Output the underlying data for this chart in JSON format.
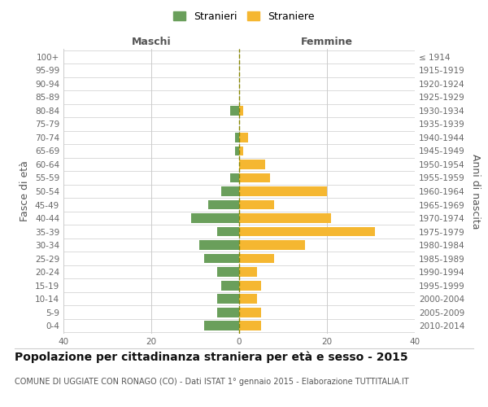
{
  "age_groups": [
    "0-4",
    "5-9",
    "10-14",
    "15-19",
    "20-24",
    "25-29",
    "30-34",
    "35-39",
    "40-44",
    "45-49",
    "50-54",
    "55-59",
    "60-64",
    "65-69",
    "70-74",
    "75-79",
    "80-84",
    "85-89",
    "90-94",
    "95-99",
    "100+"
  ],
  "birth_years": [
    "2010-2014",
    "2005-2009",
    "2000-2004",
    "1995-1999",
    "1990-1994",
    "1985-1989",
    "1980-1984",
    "1975-1979",
    "1970-1974",
    "1965-1969",
    "1960-1964",
    "1955-1959",
    "1950-1954",
    "1945-1949",
    "1940-1944",
    "1935-1939",
    "1930-1934",
    "1925-1929",
    "1920-1924",
    "1915-1919",
    "≤ 1914"
  ],
  "maschi": [
    8,
    5,
    5,
    4,
    5,
    8,
    9,
    5,
    11,
    7,
    4,
    2,
    0,
    1,
    1,
    0,
    2,
    0,
    0,
    0,
    0
  ],
  "femmine": [
    5,
    5,
    4,
    5,
    4,
    8,
    15,
    31,
    21,
    8,
    20,
    7,
    6,
    1,
    2,
    0,
    1,
    0,
    0,
    0,
    0
  ],
  "maschi_color": "#6a9f5b",
  "femmine_color": "#f5b731",
  "center_line_color": "#888800",
  "grid_color": "#cccccc",
  "background_color": "#ffffff",
  "title": "Popolazione per cittadinanza straniera per età e sesso - 2015",
  "subtitle": "COMUNE DI UGGIATE CON RONAGO (CO) - Dati ISTAT 1° gennaio 2015 - Elaborazione TUTTITALIA.IT",
  "xlabel_left": "Maschi",
  "xlabel_right": "Femmine",
  "ylabel_left": "Fasce di età",
  "ylabel_right": "Anni di nascita",
  "legend_maschi": "Stranieri",
  "legend_femmine": "Straniere",
  "xlim": 40,
  "title_fontsize": 10,
  "subtitle_fontsize": 7,
  "tick_fontsize": 7.5,
  "label_fontsize": 9
}
